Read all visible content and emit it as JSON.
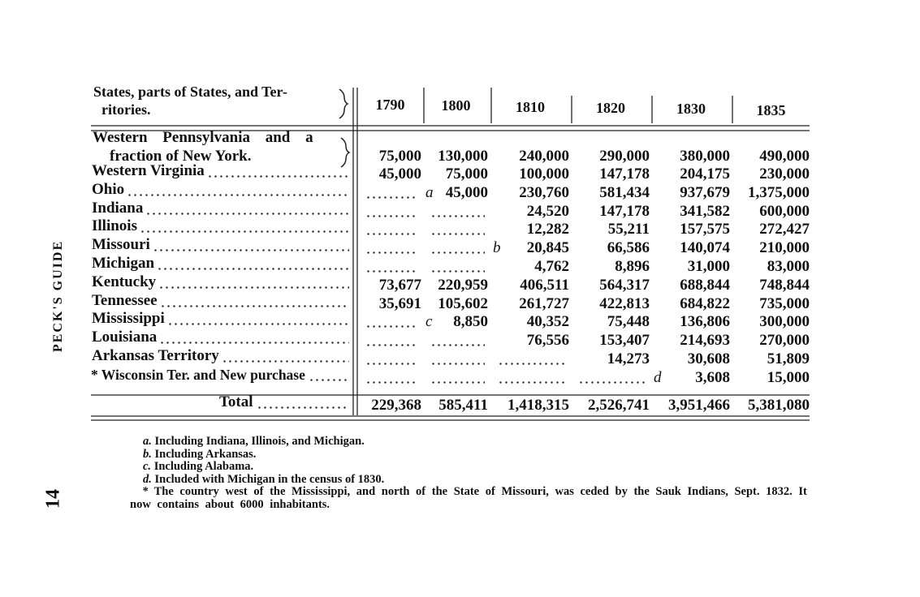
{
  "running_head": {
    "page": "14",
    "title": "PECK'S GUIDE"
  },
  "table": {
    "header": {
      "label_lines": [
        "States, parts of States, and Ter-",
        "ritories."
      ],
      "years": [
        "1790",
        "1800",
        "1810",
        "1820",
        "1830",
        "1835"
      ]
    },
    "rows": [
      {
        "label_lines": [
          "Western Pennsylvania and a",
          "fraction of New York."
        ],
        "cells": [
          "75,000",
          "130,000",
          "240,000",
          "290,000",
          "380,000",
          "490,000"
        ]
      },
      {
        "label_lines": [
          "Western Virginia"
        ],
        "cells": [
          "45,000",
          "75,000",
          "100,000",
          "147,178",
          "204,175",
          "230,000"
        ]
      },
      {
        "label_lines": [
          "Ohio"
        ],
        "cells": [
          null,
          {
            "mark": "a",
            "value": "45,000"
          },
          "230,760",
          "581,434",
          "937,679",
          "1,375,000"
        ]
      },
      {
        "label_lines": [
          "Indiana"
        ],
        "cells": [
          null,
          null,
          "24,520",
          "147,178",
          "341,582",
          "600,000"
        ]
      },
      {
        "label_lines": [
          "Illinois"
        ],
        "cells": [
          null,
          null,
          "12,282",
          "55,211",
          "157,575",
          "272,427"
        ]
      },
      {
        "label_lines": [
          "Missouri"
        ],
        "cells": [
          null,
          null,
          {
            "mark": "b",
            "value": "20,845"
          },
          "66,586",
          "140,074",
          "210,000"
        ]
      },
      {
        "label_lines": [
          "Michigan"
        ],
        "cells": [
          null,
          null,
          "4,762",
          "8,896",
          "31,000",
          "83,000"
        ]
      },
      {
        "label_lines": [
          "Kentucky"
        ],
        "cells": [
          "73,677",
          "220,959",
          "406,511",
          "564,317",
          "688,844",
          "748,844"
        ]
      },
      {
        "label_lines": [
          "Tennessee"
        ],
        "cells": [
          "35,691",
          "105,602",
          "261,727",
          "422,813",
          "684,822",
          "735,000"
        ]
      },
      {
        "label_lines": [
          "Mississippi"
        ],
        "cells": [
          null,
          {
            "mark": "c",
            "value": "8,850"
          },
          "40,352",
          "75,448",
          "136,806",
          "300,000"
        ]
      },
      {
        "label_lines": [
          "Louisiana"
        ],
        "cells": [
          null,
          null,
          "76,556",
          "153,407",
          "214,693",
          "270,000"
        ]
      },
      {
        "label_lines": [
          "Arkansas Territory"
        ],
        "cells": [
          null,
          null,
          null,
          "14,273",
          "30,608",
          "51,809"
        ]
      },
      {
        "label_lines": [
          "* Wisconsin Ter. and New purchase"
        ],
        "cells": [
          null,
          null,
          null,
          null,
          {
            "mark": "d",
            "value": "3,608"
          },
          "15,000"
        ]
      }
    ],
    "total": {
      "label": "Total",
      "cells": [
        "229,368",
        "585,411",
        "1,418,315",
        "2,526,741",
        "3,951,466",
        "5,381,080"
      ]
    }
  },
  "footnotes": [
    {
      "mark": "a.",
      "text": "Including Indiana, Illinois, and Michigan."
    },
    {
      "mark": "b.",
      "text": "Including Arkansas."
    },
    {
      "mark": "c.",
      "text": "Including Alabama."
    },
    {
      "mark": "d.",
      "text": "Included with Michigan in the census of 1830."
    },
    {
      "mark": "*",
      "text": "The country west of the Mississippi, and north of the State of Missouri, was ceded by the Sauk Indians, Sept. 1832. It now contains about 6000 inhabitants."
    }
  ]
}
